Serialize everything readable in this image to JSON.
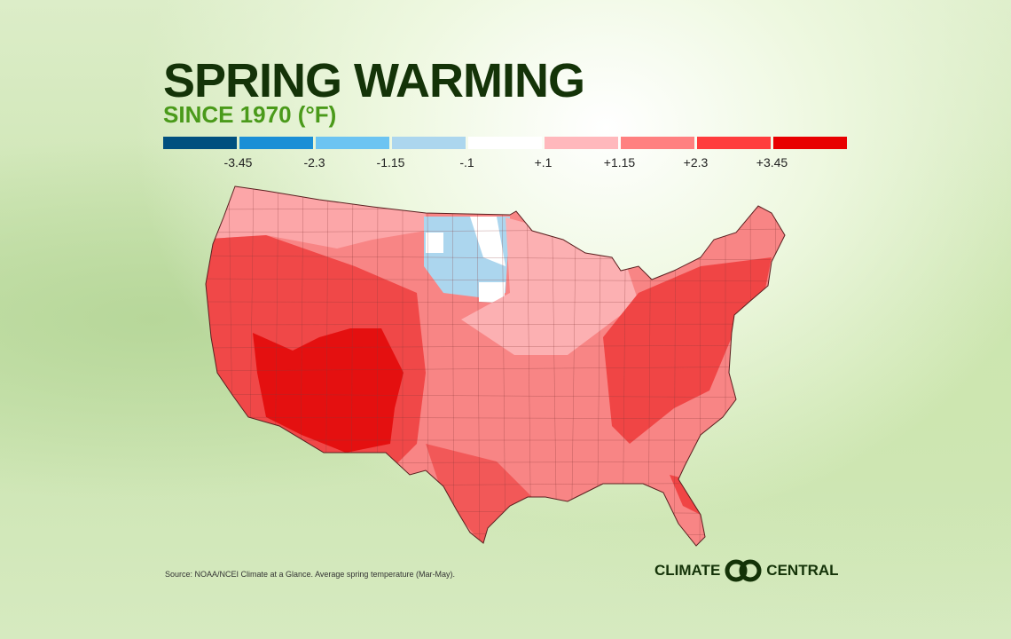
{
  "title": "SPRING WARMING",
  "subtitle": "SINCE 1970 (°F)",
  "legend": {
    "colors": [
      "#00507f",
      "#1a8fd6",
      "#6cc4f2",
      "#acd6ee",
      "#ffffff",
      "#ffb8bc",
      "#ff8080",
      "#ff3d3d",
      "#e80000"
    ],
    "ticks": [
      "-3.45",
      "-2.3",
      "-1.15",
      "-.1",
      "+.1",
      "+1.15",
      "+2.3",
      "+3.45"
    ]
  },
  "map": {
    "region": "Contiguous United States, climate divisions",
    "base_color": "#f77a7a"
  },
  "source": "Source: NOAA/NCEI Climate at a Glance. Average spring temperature (Mar-May).",
  "logo": {
    "left": "CLIMATE",
    "right": "CENTRAL"
  }
}
